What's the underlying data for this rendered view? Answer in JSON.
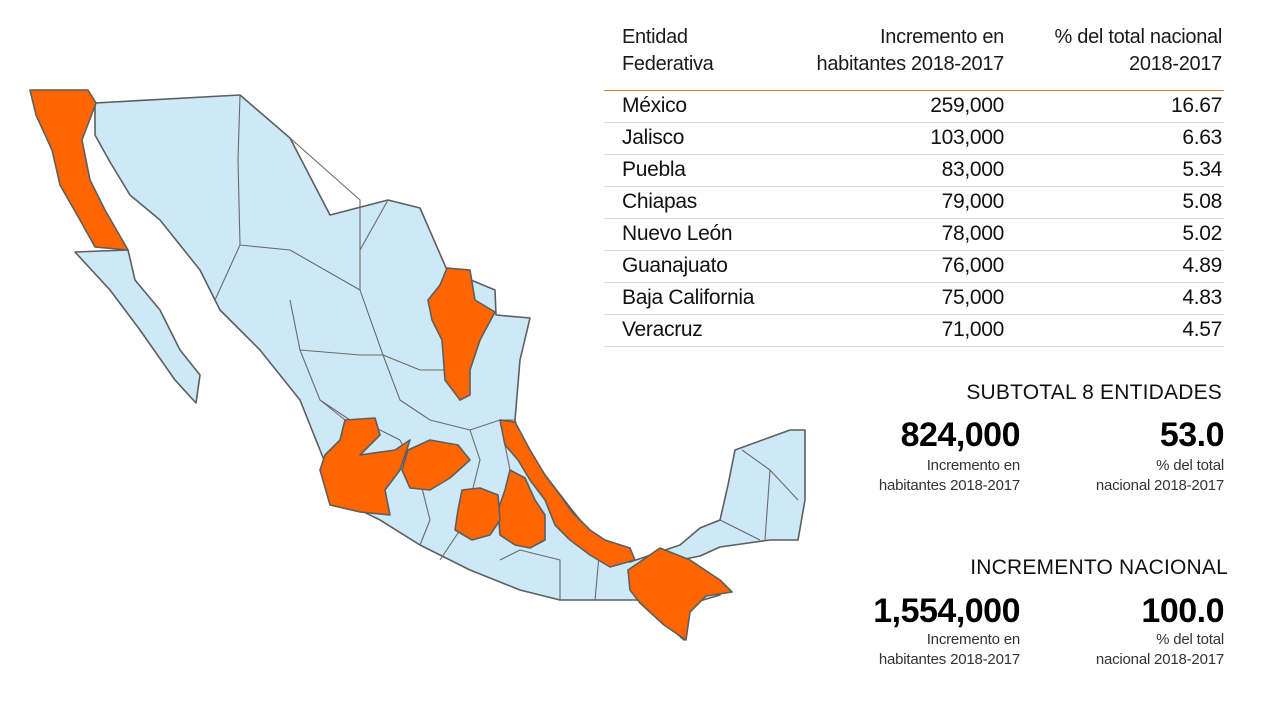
{
  "colors": {
    "highlight": "#ff6600",
    "land": "#cde9f7",
    "border": "#5e5e5e",
    "accent_rule": "#e07a3c"
  },
  "table": {
    "headers": {
      "entity": [
        "Entidad",
        "Federativa"
      ],
      "increase": [
        "Incremento en",
        "habitantes 2018-2017"
      ],
      "percent": [
        "% del total nacional",
        "2018-2017"
      ]
    },
    "rows": [
      {
        "state": "México",
        "increase": "259,000",
        "percent": "16.67"
      },
      {
        "state": "Jalisco",
        "increase": "103,000",
        "percent": "6.63"
      },
      {
        "state": "Puebla",
        "increase": "83,000",
        "percent": "5.34"
      },
      {
        "state": "Chiapas",
        "increase": "79,000",
        "percent": "5.08"
      },
      {
        "state": "Nuevo León",
        "increase": "78,000",
        "percent": "5.02"
      },
      {
        "state": "Guanajuato",
        "increase": "76,000",
        "percent": "4.89"
      },
      {
        "state": "Baja California",
        "increase": "75,000",
        "percent": "4.83"
      },
      {
        "state": "Veracruz",
        "increase": "71,000",
        "percent": "4.57"
      }
    ]
  },
  "subtotal": {
    "heading": "SUBTOTAL 8 ENTIDADES",
    "increase_value": "824,000",
    "increase_caption": [
      "Incremento en",
      "habitantes 2018-2017"
    ],
    "percent_value": "53.0",
    "percent_caption": [
      "% del total",
      "nacional 2018-2017"
    ]
  },
  "national": {
    "heading": "INCREMENTO NACIONAL",
    "increase_value": "1,554,000",
    "increase_caption": [
      "Incremento en",
      "habitantes 2018-2017"
    ],
    "percent_value": "100.0",
    "percent_caption": [
      "% del total",
      "nacional 2018-2017"
    ]
  },
  "map": {
    "highlighted_states": [
      "Baja California",
      "Nuevo León",
      "Jalisco",
      "Guanajuato",
      "Veracruz",
      "Puebla",
      "México",
      "Chiapas"
    ]
  }
}
